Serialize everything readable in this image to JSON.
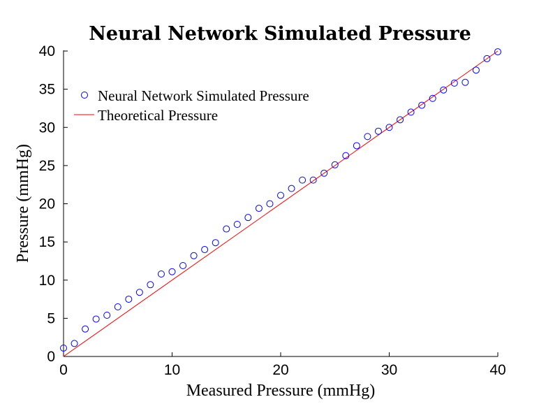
{
  "chart_data": {
    "type": "scatter",
    "title": "Neural Network Simulated Pressure",
    "xlabel": "Measured Pressure (mmHg)",
    "ylabel": "Pressure (mmHg)",
    "xlim": [
      0,
      40
    ],
    "ylim": [
      0,
      40
    ],
    "xticks": [
      0,
      10,
      20,
      30,
      40
    ],
    "yticks": [
      0,
      5,
      10,
      15,
      20,
      25,
      30,
      35,
      40
    ],
    "grid": false,
    "legend_position": "top-left",
    "series": [
      {
        "name": "Neural Network Simulated Pressure",
        "kind": "scatter",
        "marker": "circle-open",
        "color": "#0000ff",
        "x": [
          0,
          1,
          2,
          3,
          4,
          5,
          6,
          7,
          8,
          9,
          10,
          11,
          12,
          13,
          14,
          15,
          16,
          17,
          18,
          19,
          20,
          21,
          22,
          23,
          24,
          25,
          26,
          27,
          28,
          29,
          30,
          31,
          32,
          33,
          34,
          35,
          36,
          37,
          38,
          39,
          40
        ],
        "y": [
          1.1,
          1.7,
          3.6,
          4.9,
          5.4,
          6.5,
          7.5,
          8.4,
          9.4,
          10.8,
          11.1,
          11.9,
          13.2,
          14.0,
          14.9,
          16.7,
          17.3,
          18.2,
          19.4,
          20.0,
          21.1,
          22.0,
          23.1,
          23.1,
          24.0,
          25.1,
          26.3,
          27.6,
          28.8,
          29.5,
          30.0,
          31.0,
          32.0,
          32.9,
          33.8,
          34.9,
          35.8,
          35.9,
          37.5,
          39.0,
          39.9
        ]
      },
      {
        "name": "Theoretical Pressure",
        "kind": "line",
        "color": "#ff0000",
        "x": [
          0,
          40
        ],
        "y": [
          0,
          40
        ]
      }
    ]
  }
}
